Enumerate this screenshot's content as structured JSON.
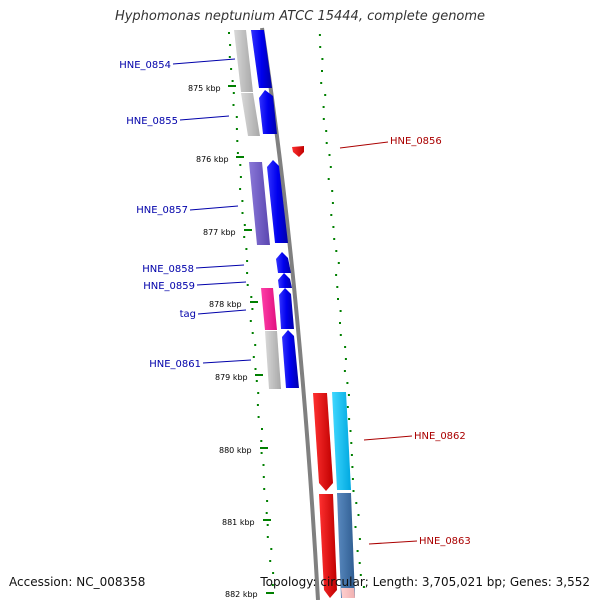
{
  "title": "Hyphomonas neptunium ATCC 15444, complete genome",
  "footer": {
    "accession": "Accession: NC_008358",
    "summary": "Topology: circular; Length: 3,705,021 bp; Genes: 3,552"
  },
  "scale_labels": [
    "875 kbp",
    "876 kbp",
    "877 kbp",
    "878 kbp",
    "879 kbp",
    "880 kbp",
    "881 kbp",
    "882 kbp"
  ],
  "colors": {
    "backbone": "#808080",
    "forward_label": "#0000aa",
    "reverse_label": "#aa0000",
    "tick": "#008000"
  },
  "genes": [
    {
      "label": "HNE_0854",
      "strand": "forward"
    },
    {
      "label": "HNE_0855",
      "strand": "forward"
    },
    {
      "label": "HNE_0856",
      "strand": "reverse"
    },
    {
      "label": "HNE_0857",
      "strand": "forward"
    },
    {
      "label": "HNE_0858",
      "strand": "forward"
    },
    {
      "label": "HNE_0859",
      "strand": "forward"
    },
    {
      "label": "tag",
      "strand": "forward"
    },
    {
      "label": "HNE_0861",
      "strand": "forward"
    },
    {
      "label": "HNE_0862",
      "strand": "reverse"
    },
    {
      "label": "HNE_0863",
      "strand": "reverse"
    }
  ]
}
